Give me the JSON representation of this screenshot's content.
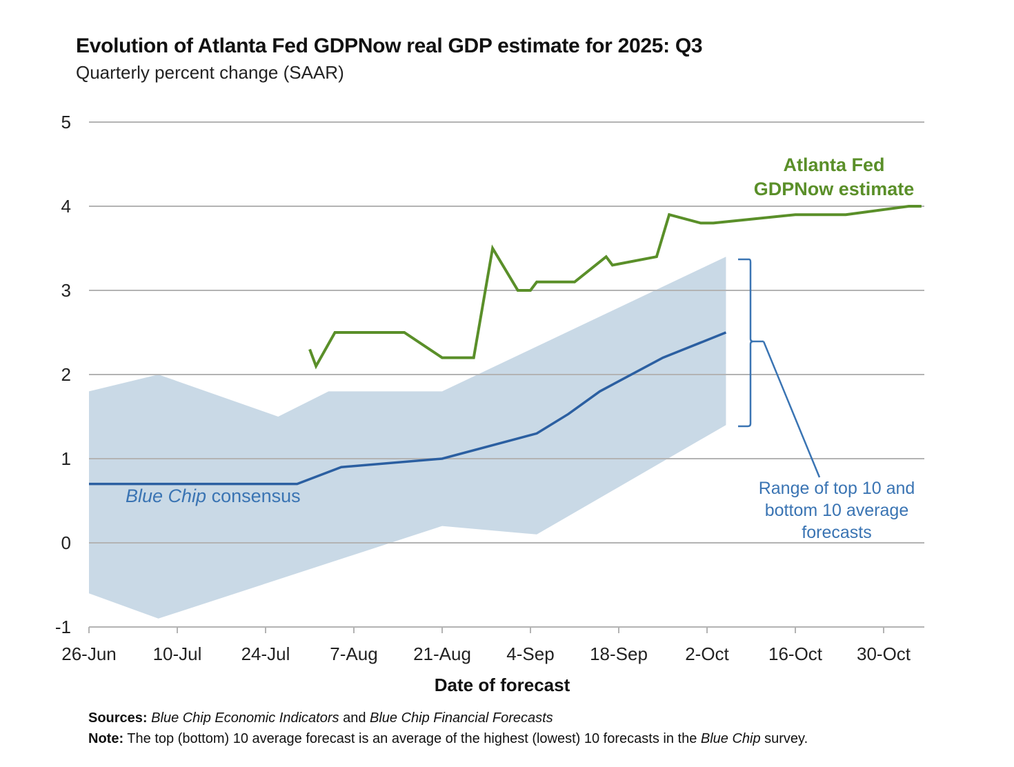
{
  "chart_data": {
    "type": "line",
    "title": "Evolution of Atlanta Fed GDPNow real GDP estimate for 2025: Q3",
    "subtitle": "Quarterly percent change (SAAR)",
    "xlabel": "Date of forecast",
    "ylabel": "",
    "x_origin": "2025-06-26",
    "xlim": [
      "2025-06-26",
      "2025-11-07"
    ],
    "ylim": [
      -1,
      5
    ],
    "yticks": [
      5,
      4,
      3,
      2,
      1,
      0,
      -1
    ],
    "ytick_labels": [
      "5",
      "4",
      "3",
      "2",
      "1",
      "0",
      "-1"
    ],
    "xticks": [
      "2025-06-26",
      "2025-07-10",
      "2025-07-24",
      "2025-08-07",
      "2025-08-21",
      "2025-09-04",
      "2025-09-18",
      "2025-10-02",
      "2025-10-16",
      "2025-10-30"
    ],
    "xtick_labels": [
      "26-Jun",
      "10-Jul",
      "24-Jul",
      "7-Aug",
      "21-Aug",
      "4-Sep",
      "18-Sep",
      "2-Oct",
      "16-Oct",
      "30-Oct"
    ],
    "grid": true,
    "colors": {
      "gdpnow": "#5a8f29",
      "consensus": "#2b5fa1",
      "range_fill": "#c9d9e6",
      "annotation_blue": "#3a74b3",
      "grid": "#b3b3b3",
      "text": "#222222"
    },
    "series": [
      {
        "name": "Atlanta Fed GDPNow estimate",
        "kind": "line",
        "points": [
          [
            "2025-07-31",
            2.3
          ],
          [
            "2025-08-01",
            2.1
          ],
          [
            "2025-08-04",
            2.5
          ],
          [
            "2025-08-15",
            2.5
          ],
          [
            "2025-08-21",
            2.2
          ],
          [
            "2025-08-26",
            2.2
          ],
          [
            "2025-08-29",
            3.5
          ],
          [
            "2025-09-02",
            3.0
          ],
          [
            "2025-09-04",
            3.0
          ],
          [
            "2025-09-05",
            3.1
          ],
          [
            "2025-09-11",
            3.1
          ],
          [
            "2025-09-16",
            3.4
          ],
          [
            "2025-09-17",
            3.3
          ],
          [
            "2025-09-24",
            3.4
          ],
          [
            "2025-09-26",
            3.9
          ],
          [
            "2025-10-01",
            3.8
          ],
          [
            "2025-10-03",
            3.8
          ],
          [
            "2025-10-16",
            3.9
          ],
          [
            "2025-10-24",
            3.9
          ],
          [
            "2025-11-03",
            4.0
          ],
          [
            "2025-11-05",
            4.0
          ]
        ]
      },
      {
        "name": "Blue Chip consensus",
        "kind": "line",
        "points": [
          [
            "2025-06-26",
            0.7
          ],
          [
            "2025-07-07",
            0.7
          ],
          [
            "2025-07-29",
            0.7
          ],
          [
            "2025-08-05",
            0.9
          ],
          [
            "2025-08-21",
            1.0
          ],
          [
            "2025-09-05",
            1.3
          ],
          [
            "2025-09-10",
            1.53
          ],
          [
            "2025-09-15",
            1.8
          ],
          [
            "2025-09-25",
            2.2
          ],
          [
            "2025-10-05",
            2.5
          ]
        ]
      },
      {
        "name": "Range of top 10 and bottom 10 average forecasts",
        "kind": "band",
        "upper": [
          [
            "2025-06-26",
            1.8
          ],
          [
            "2025-07-07",
            2.0
          ],
          [
            "2025-07-26",
            1.5
          ],
          [
            "2025-08-03",
            1.8
          ],
          [
            "2025-08-21",
            1.8
          ],
          [
            "2025-10-05",
            3.4
          ]
        ],
        "lower": [
          [
            "2025-06-26",
            -0.6
          ],
          [
            "2025-07-07",
            -0.9
          ],
          [
            "2025-08-21",
            0.2
          ],
          [
            "2025-09-05",
            0.1
          ],
          [
            "2025-10-05",
            1.4
          ]
        ]
      }
    ],
    "annotations": {
      "gdpnow_label": [
        "Atlanta Fed",
        "GDPNow estimate"
      ],
      "consensus_label_italic": "Blue Chip",
      "consensus_label_rest": " consensus",
      "range_label": [
        "Range of top 10 and",
        "bottom 10 average",
        "forecasts"
      ]
    }
  },
  "footer": {
    "sources_label": "Sources:",
    "sources_part1": "Blue Chip Economic Indicators",
    "sources_and": " and ",
    "sources_part2": "Blue Chip Financial Forecasts",
    "note_label": "Note:",
    "note_text": " The top (bottom) 10 average forecast is an average of the highest (lowest) 10 forecasts in the ",
    "note_italic": "Blue Chip",
    "note_end": " survey."
  }
}
